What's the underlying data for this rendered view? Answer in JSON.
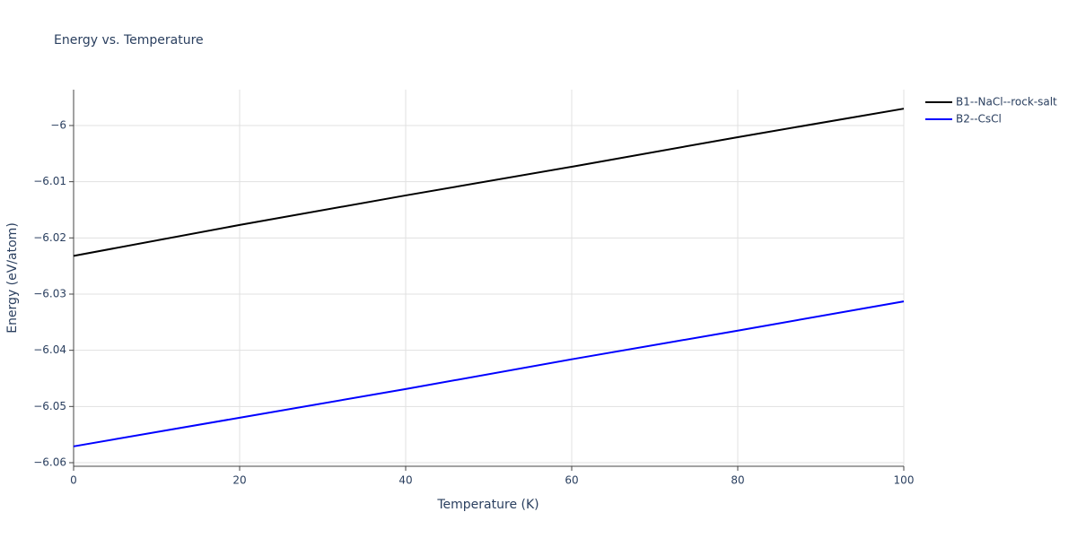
{
  "chart_data": {
    "type": "line",
    "title": "Energy vs. Temperature",
    "x_label": "Temperature (K)",
    "y_label": "Energy (eV/atom)",
    "x": [
      0,
      20,
      40,
      60,
      80,
      100
    ],
    "series": [
      {
        "name": "B1--NaCl--rock-salt",
        "color": "#000000",
        "values": [
          -6.0232,
          -6.0177,
          -6.01244,
          -6.00734,
          -6.00207,
          -5.997
        ]
      },
      {
        "name": "B2--CsCl",
        "color": "#0000ff",
        "values": [
          -6.0571,
          -6.052,
          -6.0469,
          -6.0416,
          -6.0365,
          -6.0313
        ]
      }
    ],
    "xlim": [
      0,
      100
    ],
    "xticks": [
      0,
      20,
      40,
      60,
      80,
      100
    ],
    "ylim": [
      -6.06064,
      -5.99362
    ],
    "yticks": [
      {
        "value": -6,
        "label": "−6"
      },
      {
        "value": -6.01,
        "label": "−6.01"
      },
      {
        "value": -6.02,
        "label": "−6.02"
      },
      {
        "value": -6.03,
        "label": "−6.03"
      },
      {
        "value": -6.04,
        "label": "−6.04"
      },
      {
        "value": -6.05,
        "label": "−6.05"
      },
      {
        "value": -6.06,
        "label": "−6.06"
      }
    ],
    "grid": true,
    "legend": "top-right"
  }
}
